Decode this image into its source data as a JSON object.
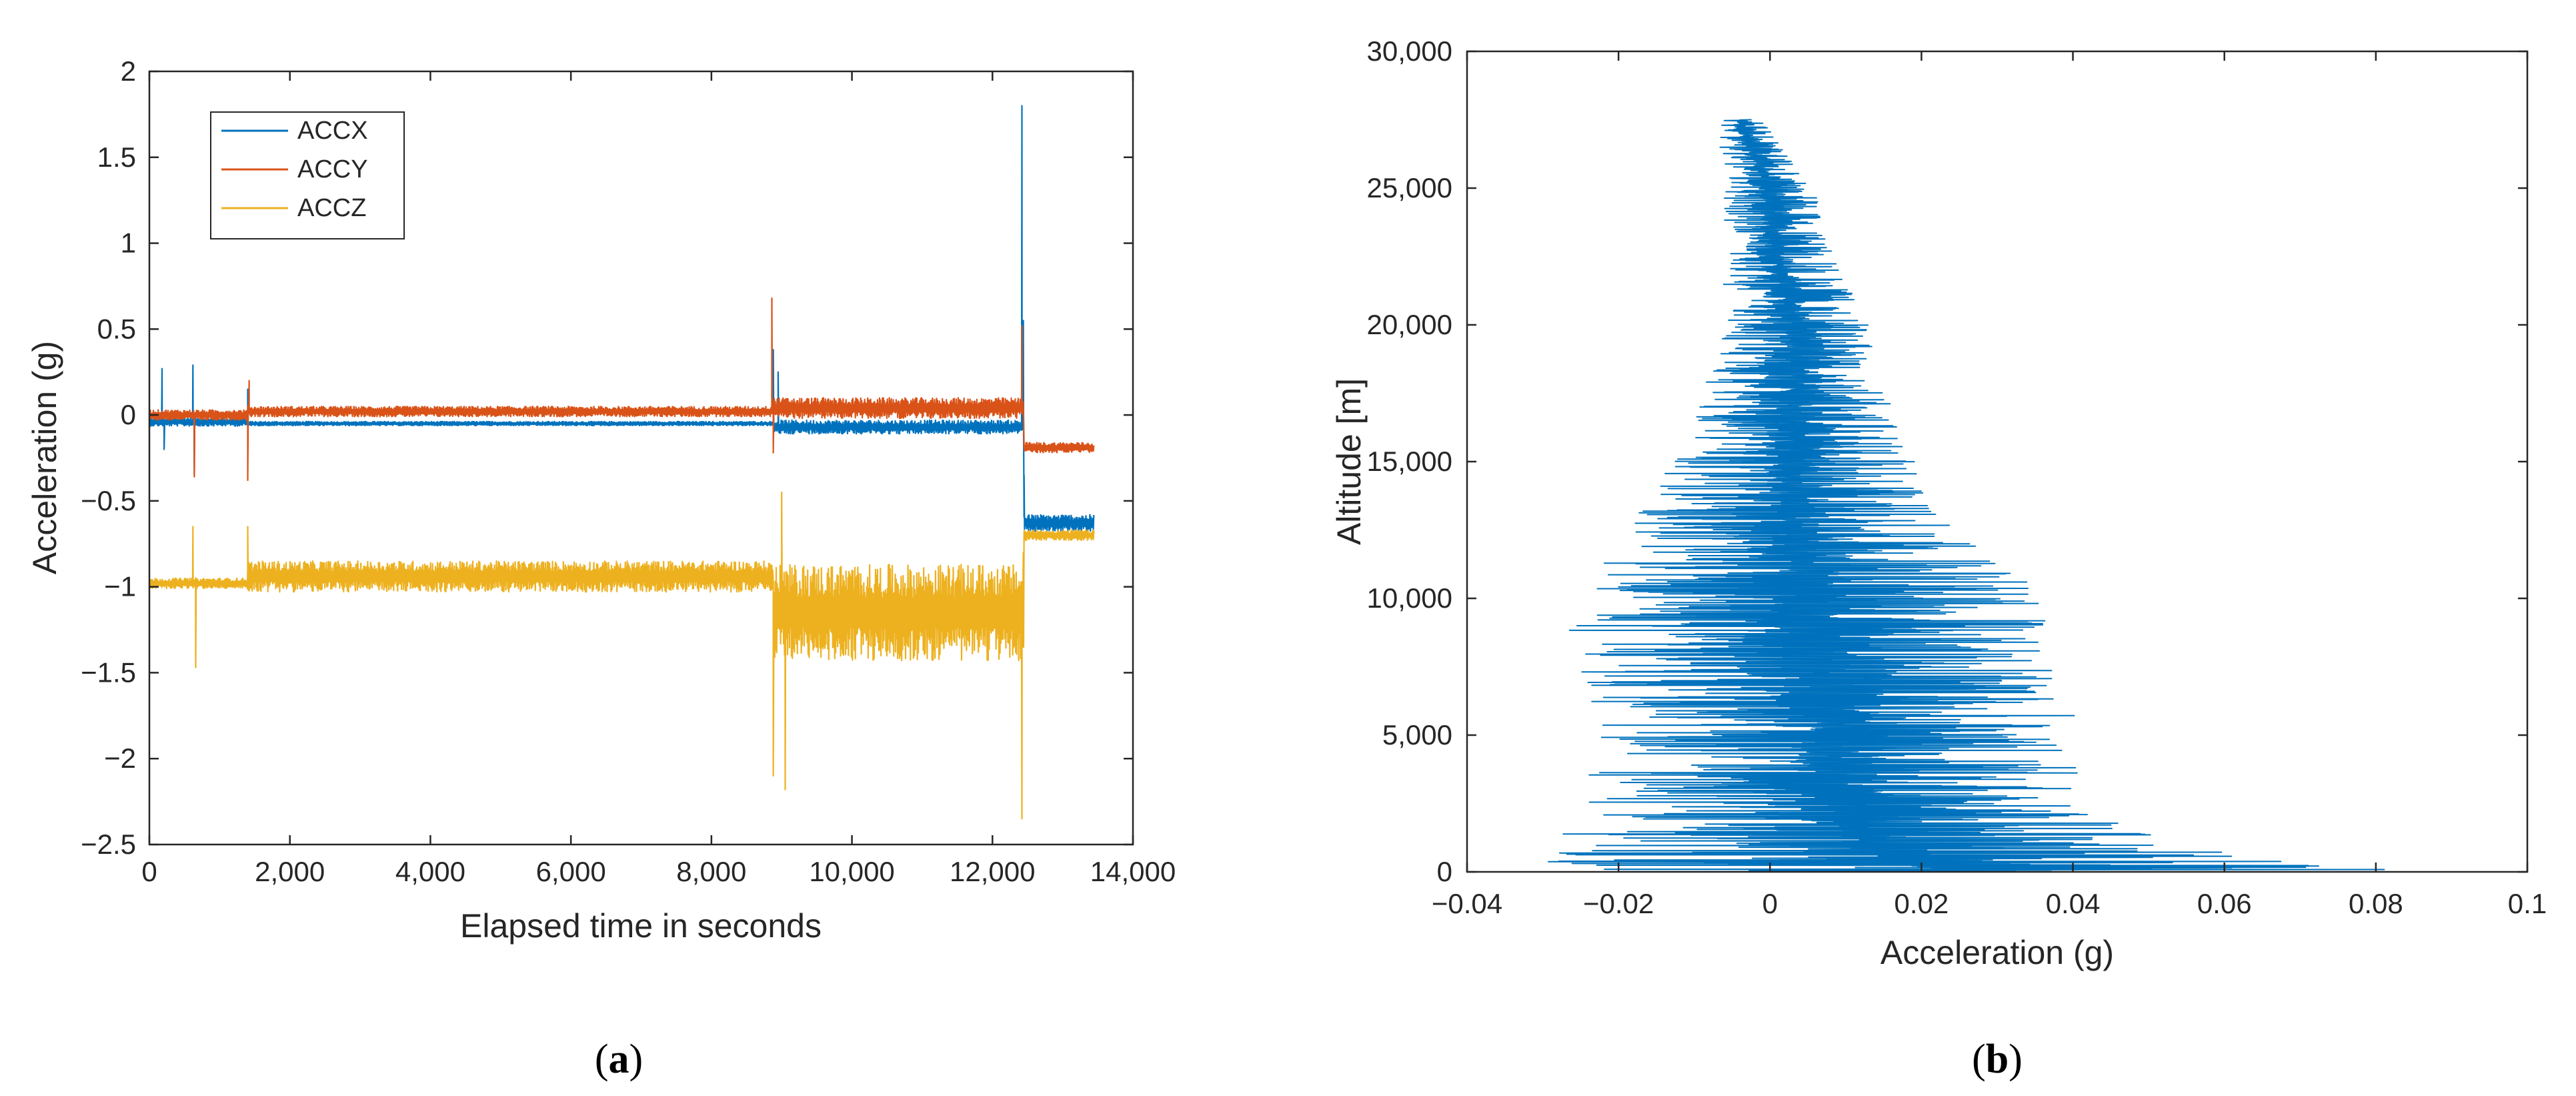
{
  "chart_data": [
    {
      "panel": "(a)",
      "type": "line",
      "xlabel": "Elapsed time in seconds",
      "ylabel": "Acceleration (g)",
      "xlim": [
        0,
        14000
      ],
      "ylim": [
        -2.5,
        2
      ],
      "xticks": [
        0,
        2000,
        4000,
        6000,
        8000,
        10000,
        12000,
        14000
      ],
      "xtick_labels": [
        "0",
        "2,000",
        "4,000",
        "6,000",
        "8,000",
        "10,000",
        "12,000",
        "14,000"
      ],
      "yticks": [
        -2.5,
        -2,
        -1.5,
        -1,
        -0.5,
        0,
        0.5,
        1,
        1.5,
        2
      ],
      "ytick_labels": [
        "−2.5",
        "−2",
        "−1.5",
        "−1",
        "−0.5",
        "0",
        "0.5",
        "1",
        "1.5",
        "2"
      ],
      "grid": false,
      "legend_position": "top-left",
      "series": [
        {
          "name": "ACCX",
          "color": "#0072BD",
          "segments": [
            {
              "x0": 0,
              "x1": 1400,
              "base": -0.04,
              "noise": 0.025
            },
            {
              "x0": 1400,
              "x1": 8880,
              "base": -0.05,
              "noise": 0.012
            },
            {
              "x0": 8880,
              "x1": 12450,
              "base": -0.07,
              "noise": 0.04
            },
            {
              "x0": 12450,
              "x1": 13450,
              "base": -0.63,
              "noise": 0.05
            }
          ],
          "spikes": [
            [
              180,
              0.27
            ],
            [
              210,
              -0.2
            ],
            [
              620,
              0.29
            ],
            [
              640,
              -0.35
            ],
            [
              1400,
              0.15
            ],
            [
              8880,
              0.38
            ],
            [
              8950,
              0.25
            ],
            [
              12420,
              1.8
            ],
            [
              12440,
              0.55
            ],
            [
              12450,
              -0.35
            ]
          ]
        },
        {
          "name": "ACCY",
          "color": "#D95319",
          "segments": [
            {
              "x0": 0,
              "x1": 1400,
              "base": 0.0,
              "noise": 0.03
            },
            {
              "x0": 1400,
              "x1": 8880,
              "base": 0.02,
              "noise": 0.03
            },
            {
              "x0": 8880,
              "x1": 12450,
              "base": 0.04,
              "noise": 0.06
            },
            {
              "x0": 12450,
              "x1": 13450,
              "base": -0.19,
              "noise": 0.03
            }
          ],
          "spikes": [
            [
              640,
              -0.36
            ],
            [
              1400,
              -0.38
            ],
            [
              1420,
              0.2
            ],
            [
              8860,
              0.68
            ],
            [
              8880,
              -0.22
            ],
            [
              12420,
              0.52
            ]
          ]
        },
        {
          "name": "ACCZ",
          "color": "#EDB120",
          "segments": [
            {
              "x0": 0,
              "x1": 1400,
              "base": -0.98,
              "noise": 0.03
            },
            {
              "x0": 1400,
              "x1": 8880,
              "base": -0.94,
              "noise": 0.09
            },
            {
              "x0": 8880,
              "x1": 12450,
              "base": -1.15,
              "noise": 0.28
            },
            {
              "x0": 12450,
              "x1": 13450,
              "base": -0.7,
              "noise": 0.03
            }
          ],
          "spikes": [
            [
              620,
              -0.65
            ],
            [
              660,
              -1.47
            ],
            [
              1400,
              -0.65
            ],
            [
              8880,
              -2.1
            ],
            [
              9050,
              -2.18
            ],
            [
              9000,
              -0.45
            ],
            [
              12420,
              -2.35
            ],
            [
              12440,
              -0.8
            ]
          ]
        }
      ]
    },
    {
      "panel": "(b)",
      "type": "line",
      "orientation": "vertical",
      "xlabel": "Acceleration (g)",
      "ylabel": "Altitude [m]",
      "xlim": [
        -0.04,
        0.1
      ],
      "ylim": [
        0,
        30000
      ],
      "xticks": [
        -0.04,
        -0.02,
        0,
        0.02,
        0.04,
        0.06,
        0.08,
        0.1
      ],
      "xtick_labels": [
        "−0.04",
        "−0.02",
        "0",
        "0.02",
        "0.04",
        "0.06",
        "0.08",
        "0.1"
      ],
      "yticks": [
        0,
        5000,
        10000,
        15000,
        20000,
        25000,
        30000
      ],
      "ytick_labels": [
        "0",
        "5,000",
        "10,000",
        "15,000",
        "20,000",
        "25,000",
        "30,000"
      ],
      "grid": false,
      "series": [
        {
          "color": "#0072BD",
          "altitude_max": 27500,
          "envelope": [
            {
              "alt": 0,
              "min": -0.033,
              "max": 0.087
            },
            {
              "alt": 1000,
              "min": -0.03,
              "max": 0.057
            },
            {
              "alt": 3000,
              "min": -0.025,
              "max": 0.042
            },
            {
              "alt": 5000,
              "min": -0.025,
              "max": 0.042
            },
            {
              "alt": 8000,
              "min": -0.027,
              "max": 0.039
            },
            {
              "alt": 10000,
              "min": -0.026,
              "max": 0.037
            },
            {
              "alt": 13000,
              "min": -0.018,
              "max": 0.023
            },
            {
              "alt": 16000,
              "min": -0.011,
              "max": 0.018
            },
            {
              "alt": 20000,
              "min": -0.006,
              "max": 0.013
            },
            {
              "alt": 23000,
              "min": -0.007,
              "max": 0.008
            },
            {
              "alt": 25000,
              "min": -0.006,
              "max": 0.006
            },
            {
              "alt": 27500,
              "min": -0.007,
              "max": -0.001
            }
          ]
        }
      ]
    }
  ],
  "panel_labels": {
    "a_open": "(",
    "a_letter": "a",
    "a_close": ")",
    "b_open": "(",
    "b_letter": "b",
    "b_close": ")"
  }
}
